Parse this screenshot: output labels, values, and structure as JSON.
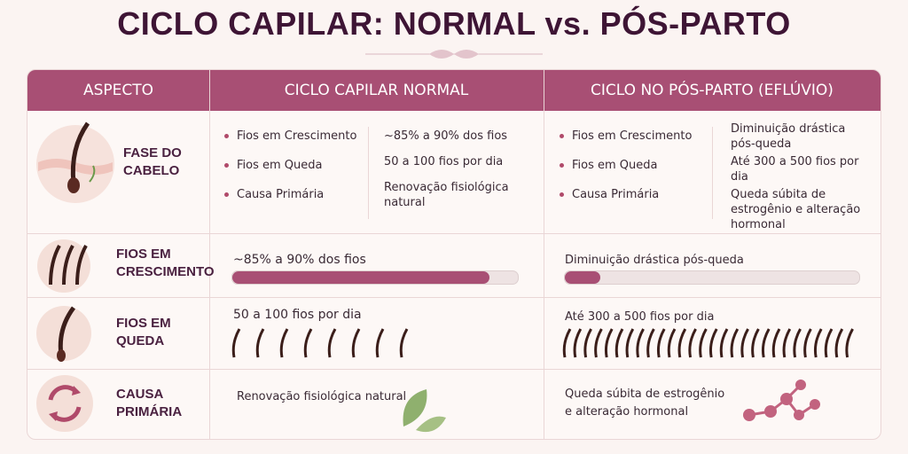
{
  "title": "CICLO CAPILAR: NORMAL vs. PÓS-PARTO",
  "table": {
    "headers": [
      "ASPECTO",
      "CICLO CAPILAR NORMAL",
      "CICLO NO PÓS-PARTO (EFLÚVIO)"
    ],
    "summary": {
      "label": "FASE DO CABELO",
      "items": [
        "Fios em Crescimento",
        "Fios em Queda",
        "Causa Primária"
      ],
      "normal": [
        "~85% a 90% dos fios",
        "50 a 100 fios por dia",
        "Renovação fisiológica natural"
      ],
      "postpartum": [
        "Diminuição drástica pós-queda",
        "Até 300 a 500 fios por dia",
        "Queda súbita de estrogênio e alteração hormonal"
      ]
    },
    "rows": [
      {
        "label": "FIOS EM CRESCIMENTO",
        "normal": "~85% a 90% dos fios",
        "postpartum": "Diminuição drástica pós-queda"
      },
      {
        "label": "FIOS EM QUEDA",
        "normal": "50 a 100 fios por dia",
        "postpartum": "Até 300 a 500 fios por dia"
      },
      {
        "label": "CAUSA PRIMÁRIA",
        "normal": "Renovação fisiológica natural",
        "postpartum": "Queda súbita de estrogênio e alteração hormonal"
      }
    ]
  }
}
